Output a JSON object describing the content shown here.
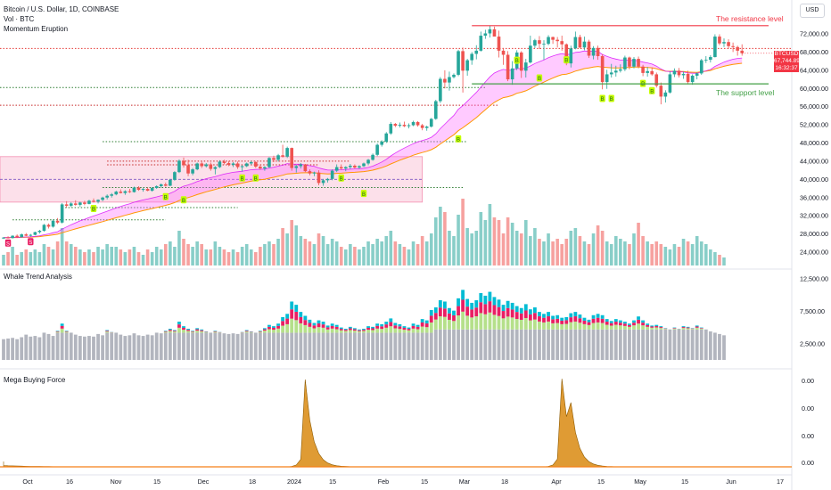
{
  "header": {
    "title": "Bitcoin / U.S. Dollar, 1D, COINBASE",
    "volume_label": "Vol · BTC",
    "indicator_label": "Momentum Eruption"
  },
  "currency_button": "USD",
  "price_badge": {
    "symbol": "BTCUSD",
    "price": "67,744.89",
    "countdown": "16:32:37"
  },
  "annotations": {
    "resistance": "The resistance level",
    "support": "The support level"
  },
  "panels": {
    "whale": "Whale Trend Analysis",
    "mega": "Mega Buying Force"
  },
  "colors": {
    "up": "#26a69a",
    "down": "#ef5350",
    "resistance": "#f23645",
    "support": "#43a047",
    "cloud": "#ff66ff",
    "ema_orange": "#ff9800",
    "whale_cyan": "#00bcd4",
    "whale_red": "#e91e63",
    "whale_lime": "#b5e08a",
    "whale_gray": "#b2b5be",
    "mega_fill": "#d98a10"
  },
  "chart_data": {
    "type": "candlestick",
    "interval": "1D",
    "source": "COINBASE",
    "price_axis_ticks": [
      "72,000.00",
      "68,000.00",
      "64,000.00",
      "60,000.00",
      "56,000.00",
      "52,000.00",
      "48,000.00",
      "44,000.00",
      "40,000.00",
      "36,000.00",
      "32,000.00",
      "28,000.00",
      "24,000.00"
    ],
    "whale_axis_ticks": [
      "12,500.00",
      "7,500.00",
      "2,500.00"
    ],
    "mega_axis_ticks": [
      "0.00",
      "0.00",
      "0.00",
      "0.00"
    ],
    "time_axis_ticks": [
      "Oct",
      "16",
      "Nov",
      "15",
      "Dec",
      "18",
      "2024",
      "15",
      "Feb",
      "15",
      "Mar",
      "18",
      "Apr",
      "15",
      "May",
      "15",
      "Jun",
      "17"
    ],
    "last_price": 67744.89,
    "resistance_level": 73800,
    "support_level": 61000,
    "candles": [
      [
        27000,
        27300,
        26900,
        27200
      ],
      [
        27200,
        27500,
        27000,
        27100
      ],
      [
        27100,
        27700,
        26980,
        27600
      ],
      [
        27600,
        27900,
        27100,
        27300
      ],
      [
        27300,
        28100,
        27200,
        27900
      ],
      [
        27900,
        28200,
        27500,
        27600
      ],
      [
        27600,
        28000,
        27400,
        27800
      ],
      [
        27800,
        28500,
        27700,
        28400
      ],
      [
        28400,
        28900,
        28100,
        28700
      ],
      [
        28700,
        30200,
        28500,
        30000
      ],
      [
        30000,
        30300,
        29200,
        29600
      ],
      [
        29600,
        31200,
        29400,
        30900
      ],
      [
        30900,
        31500,
        30200,
        30500
      ],
      [
        30500,
        34800,
        30300,
        34500
      ],
      [
        34500,
        35200,
        33800,
        34200
      ],
      [
        34200,
        35000,
        33900,
        34700
      ],
      [
        34700,
        35400,
        34200,
        34400
      ],
      [
        34400,
        35100,
        34000,
        34900
      ],
      [
        34900,
        35300,
        34300,
        34600
      ],
      [
        34600,
        35500,
        34500,
        35300
      ],
      [
        35300,
        35800,
        34900,
        35100
      ],
      [
        35100,
        35600,
        34700,
        35500
      ],
      [
        35500,
        36200,
        35200,
        36000
      ],
      [
        36000,
        36700,
        35600,
        36400
      ],
      [
        36400,
        37000,
        36000,
        36700
      ],
      [
        36700,
        37500,
        36500,
        37300
      ],
      [
        37300,
        37800,
        36900,
        37000
      ],
      [
        37000,
        37600,
        36600,
        37400
      ],
      [
        37400,
        37900,
        37000,
        37200
      ],
      [
        37200,
        38400,
        37100,
        38200
      ],
      [
        38200,
        38500,
        37500,
        37700
      ],
      [
        37700,
        38100,
        37300,
        37900
      ],
      [
        37900,
        38200,
        37400,
        37500
      ],
      [
        37500,
        38300,
        37300,
        38100
      ],
      [
        38100,
        38700,
        37900,
        38500
      ],
      [
        38500,
        39100,
        38200,
        38900
      ],
      [
        38900,
        39300,
        38400,
        38600
      ],
      [
        38600,
        40100,
        38500,
        39900
      ],
      [
        39900,
        41800,
        39700,
        41600
      ],
      [
        41600,
        44400,
        41400,
        44100
      ],
      [
        44100,
        44800,
        42600,
        43100
      ],
      [
        43100,
        44300,
        40700,
        41300
      ],
      [
        41300,
        42500,
        40900,
        42200
      ],
      [
        42200,
        43700,
        42000,
        43500
      ],
      [
        43500,
        43900,
        42500,
        42900
      ],
      [
        42900,
        43600,
        42600,
        43300
      ],
      [
        43300,
        43700,
        41900,
        42300
      ],
      [
        42300,
        42900,
        41100,
        42700
      ],
      [
        42700,
        44200,
        42500,
        43900
      ],
      [
        43900,
        44300,
        43300,
        43600
      ],
      [
        43600,
        44000,
        42900,
        43200
      ],
      [
        43200,
        43800,
        42700,
        43500
      ],
      [
        43500,
        43900,
        42300,
        42700
      ],
      [
        42700,
        43100,
        41700,
        42900
      ],
      [
        42900,
        43700,
        42700,
        43500
      ],
      [
        43500,
        44100,
        43200,
        43800
      ],
      [
        43800,
        44000,
        42500,
        42800
      ],
      [
        42800,
        43300,
        42100,
        42400
      ],
      [
        42400,
        42900,
        41900,
        42700
      ],
      [
        42700,
        44900,
        42500,
        44700
      ],
      [
        44700,
        45200,
        43800,
        44300
      ],
      [
        44300,
        45600,
        43900,
        45300
      ],
      [
        45300,
        47600,
        44800,
        45000
      ],
      [
        45000,
        47200,
        44700,
        46900
      ],
      [
        46900,
        47000,
        41900,
        42500
      ],
      [
        42500,
        43200,
        41500,
        42900
      ],
      [
        42900,
        43600,
        42400,
        43300
      ],
      [
        43300,
        43400,
        41600,
        41800
      ],
      [
        41800,
        42200,
        40900,
        41300
      ],
      [
        41300,
        41700,
        40700,
        41500
      ],
      [
        41500,
        42000,
        38700,
        39200
      ],
      [
        39200,
        40100,
        38600,
        39800
      ],
      [
        39800,
        40300,
        39300,
        40100
      ],
      [
        40100,
        42200,
        39800,
        41900
      ],
      [
        41900,
        43300,
        41600,
        42700
      ],
      [
        42700,
        43300,
        42100,
        42400
      ],
      [
        42400,
        42900,
        41800,
        42700
      ],
      [
        42700,
        43400,
        42300,
        43000
      ],
      [
        43000,
        43300,
        42400,
        42600
      ],
      [
        42600,
        43100,
        42300,
        42900
      ],
      [
        42900,
        43700,
        42700,
        43500
      ],
      [
        43500,
        44500,
        43100,
        44300
      ],
      [
        44300,
        45700,
        44100,
        45400
      ],
      [
        45400,
        47900,
        45100,
        47600
      ],
      [
        47600,
        48600,
        47200,
        48300
      ],
      [
        48300,
        50400,
        48000,
        50100
      ],
      [
        50100,
        52600,
        49800,
        52200
      ],
      [
        52200,
        52400,
        51500,
        51800
      ],
      [
        51800,
        52500,
        51400,
        52000
      ],
      [
        52000,
        52700,
        51500,
        51700
      ],
      [
        51700,
        52300,
        51200,
        51900
      ],
      [
        51900,
        52900,
        51700,
        52600
      ],
      [
        52600,
        52800,
        51600,
        51900
      ],
      [
        51900,
        52200,
        50800,
        51300
      ],
      [
        51300,
        51800,
        50700,
        51600
      ],
      [
        51600,
        53500,
        51400,
        53300
      ],
      [
        53300,
        57500,
        53100,
        57200
      ],
      [
        57200,
        62500,
        56800,
        62100
      ],
      [
        62100,
        64000,
        60000,
        61300
      ],
      [
        61300,
        63700,
        59500,
        62500
      ],
      [
        62500,
        63300,
        62200,
        63000
      ],
      [
        63000,
        68500,
        62700,
        68200
      ],
      [
        68200,
        69000,
        59100,
        63900
      ],
      [
        63900,
        66500,
        62800,
        66200
      ],
      [
        66200,
        68000,
        65200,
        67600
      ],
      [
        67600,
        69500,
        66400,
        68300
      ],
      [
        68300,
        72500,
        68100,
        71600
      ],
      [
        71600,
        72900,
        70900,
        72100
      ],
      [
        72100,
        73800,
        71200,
        73000
      ],
      [
        73000,
        73600,
        71500,
        71400
      ],
      [
        71400,
        72700,
        66800,
        68300
      ],
      [
        68300,
        68900,
        65200,
        67400
      ],
      [
        67400,
        68200,
        61600,
        62000
      ],
      [
        62000,
        66000,
        60800,
        64400
      ],
      [
        64400,
        68400,
        64000,
        67900
      ],
      [
        67900,
        68200,
        62300,
        63900
      ],
      [
        63900,
        66500,
        62400,
        65700
      ],
      [
        65700,
        71600,
        65500,
        69400
      ],
      [
        69400,
        70900,
        68900,
        70600
      ],
      [
        70600,
        71500,
        68700,
        69800
      ],
      [
        69800,
        70600,
        66300,
        69800
      ],
      [
        69800,
        71700,
        69500,
        71300
      ],
      [
        71300,
        71400,
        69800,
        70700
      ],
      [
        70700,
        71300,
        69000,
        70400
      ],
      [
        70400,
        71600,
        68300,
        69700
      ],
      [
        69700,
        69900,
        65100,
        65500
      ],
      [
        65500,
        69400,
        64600,
        68800
      ],
      [
        68800,
        72500,
        68600,
        71300
      ],
      [
        71300,
        71800,
        68800,
        69000
      ],
      [
        69000,
        71400,
        68400,
        70300
      ],
      [
        70300,
        70700,
        66700,
        67200
      ],
      [
        67200,
        69300,
        66400,
        68900
      ],
      [
        68900,
        69400,
        66300,
        67100
      ],
      [
        67100,
        67500,
        59800,
        61400
      ],
      [
        61400,
        64100,
        59900,
        63100
      ],
      [
        63100,
        65400,
        62400,
        63500
      ],
      [
        63500,
        65000,
        62600,
        63900
      ],
      [
        63900,
        65300,
        63500,
        64200
      ],
      [
        64200,
        67200,
        63800,
        66800
      ],
      [
        66800,
        67000,
        64200,
        64800
      ],
      [
        64800,
        66900,
        64400,
        66500
      ],
      [
        66500,
        67000,
        64400,
        64800
      ],
      [
        64800,
        65200,
        62700,
        63400
      ],
      [
        63400,
        64700,
        62600,
        63800
      ],
      [
        63800,
        64600,
        62800,
        63100
      ],
      [
        63100,
        63500,
        60200,
        60600
      ],
      [
        60600,
        61300,
        56500,
        58200
      ],
      [
        58200,
        59600,
        56900,
        59100
      ],
      [
        59100,
        63700,
        58900,
        63100
      ],
      [
        63100,
        64400,
        62500,
        63900
      ],
      [
        63900,
        64500,
        62400,
        62900
      ],
      [
        62900,
        63700,
        62100,
        63200
      ],
      [
        63200,
        63900,
        60900,
        61400
      ],
      [
        61400,
        63100,
        60800,
        62800
      ],
      [
        62800,
        63500,
        62000,
        63300
      ],
      [
        63300,
        66500,
        63000,
        66200
      ],
      [
        66200,
        67100,
        65600,
        66300
      ],
      [
        66300,
        67300,
        65700,
        66900
      ],
      [
        66900,
        71900,
        66800,
        71400
      ],
      [
        71400,
        71900,
        69500,
        69900
      ],
      [
        69900,
        71000,
        69100,
        70200
      ],
      [
        70200,
        70800,
        68700,
        69300
      ],
      [
        69300,
        70100,
        68000,
        69100
      ],
      [
        69100,
        69400,
        67200,
        68300
      ],
      [
        68300,
        69700,
        67200,
        67744
      ]
    ],
    "volume": [
      4,
      5,
      7,
      4,
      5,
      6,
      5,
      6,
      5,
      8,
      7,
      6,
      9,
      14,
      9,
      8,
      7,
      6,
      5,
      6,
      5,
      7,
      6,
      8,
      7,
      7,
      6,
      5,
      6,
      7,
      5,
      4,
      6,
      5,
      7,
      6,
      8,
      9,
      7,
      13,
      10,
      8,
      7,
      9,
      8,
      6,
      6,
      9,
      7,
      6,
      5,
      6,
      5,
      7,
      8,
      6,
      5,
      7,
      8,
      9,
      8,
      10,
      14,
      12,
      17,
      15,
      11,
      10,
      9,
      8,
      12,
      11,
      8,
      10,
      9,
      7,
      6,
      8,
      7,
      6,
      7,
      9,
      8,
      10,
      9,
      11,
      13,
      9,
      8,
      7,
      6,
      9,
      8,
      11,
      9,
      12,
      18,
      22,
      20,
      13,
      11,
      19,
      25,
      14,
      12,
      13,
      20,
      17,
      23,
      18,
      17,
      12,
      18,
      16,
      13,
      12,
      17,
      11,
      14,
      10,
      9,
      12,
      9,
      10,
      8,
      10,
      13,
      14,
      11,
      9,
      8,
      12,
      15,
      13,
      9,
      8,
      11,
      10,
      9,
      8,
      12,
      16,
      11,
      9,
      8,
      9,
      8,
      7,
      6,
      8,
      7,
      10,
      9,
      8,
      11,
      9,
      8,
      6,
      5,
      4,
      3
    ],
    "whale_total": [
      3200,
      3300,
      3400,
      3200,
      3500,
      3900,
      3600,
      3700,
      3500,
      4200,
      4000,
      3700,
      4500,
      5600,
      4500,
      4200,
      3900,
      3700,
      3600,
      3700,
      3600,
      4000,
      3800,
      4600,
      4300,
      4200,
      3900,
      3700,
      3800,
      4100,
      3800,
      3700,
      3900,
      3800,
      4200,
      4100,
      4500,
      4800,
      4600,
      5900,
      5200,
      4800,
      4500,
      4900,
      4700,
      4400,
      4200,
      4500,
      4300,
      4100,
      4000,
      4100,
      4000,
      4300,
      4600,
      4400,
      4200,
      4500,
      4900,
      5400,
      5200,
      5600,
      6600,
      7100,
      9000,
      8500,
      7400,
      6800,
      6200,
      5700,
      6100,
      5900,
      5300,
      5600,
      5400,
      5000,
      4800,
      5100,
      4900,
      4700,
      4800,
      5200,
      5100,
      5600,
      5500,
      5900,
      6400,
      5700,
      5500,
      5200,
      5000,
      5600,
      5400,
      6300,
      6100,
      7700,
      8100,
      9200,
      9000,
      8000,
      7600,
      9500,
      10800,
      9400,
      8800,
      9200,
      10300,
      9900,
      10500,
      9700,
      9300,
      8500,
      9100,
      8800,
      8300,
      8000,
      8600,
      7800,
      8100,
      7400,
      7100,
      7400,
      6800,
      6900,
      6500,
      6600,
      7200,
      7400,
      7000,
      6500,
      6200,
      6900,
      7100,
      6900,
      6300,
      6000,
      6300,
      6100,
      5900,
      5600,
      6100,
      6700,
      6100,
      5600,
      5300,
      5400,
      5200,
      4900,
      4700,
      5000,
      4800,
      5200,
      5100,
      4900,
      5300,
      5000,
      4700,
      4400,
      4200,
      4000,
      3800
    ],
    "mega_spikes": [
      {
        "day": 67,
        "value": 1.0
      },
      {
        "day": 124,
        "value": 1.0
      },
      {
        "day": 126,
        "value": 0.45
      }
    ]
  }
}
